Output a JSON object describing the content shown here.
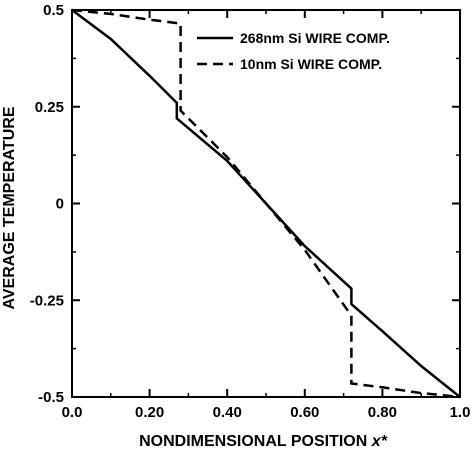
{
  "chart_data": {
    "type": "line",
    "xlabel": "NONDIMENSIONAL POSITION",
    "xlabel_var": "x*",
    "ylabel": "AVERAGE TEMPERATURE",
    "xlim": [
      0.0,
      1.0
    ],
    "ylim": [
      -0.5,
      0.5
    ],
    "x_ticks": [
      0.0,
      0.2,
      0.4,
      0.6,
      0.8,
      1.0
    ],
    "x_tick_labels": [
      "0.0",
      "0.20",
      "0.40",
      "0.60",
      "0.80",
      "1.0"
    ],
    "y_ticks": [
      0.5,
      0.25,
      0,
      -0.25,
      -0.5
    ],
    "y_tick_labels": [
      "0.5",
      "0.25",
      "0",
      "-0.25",
      "-0.5"
    ],
    "grid": false,
    "legend_position": "top-right",
    "series": [
      {
        "name": "268nm Si WIRE COMP.",
        "style": "solid",
        "color": "#000000",
        "points": [
          [
            0.0,
            0.5
          ],
          [
            0.1,
            0.425
          ],
          [
            0.2,
            0.33
          ],
          [
            0.27,
            0.26
          ],
          [
            0.27,
            0.22
          ],
          [
            0.4,
            0.11
          ],
          [
            0.5,
            0.0
          ],
          [
            0.6,
            -0.11
          ],
          [
            0.72,
            -0.22
          ],
          [
            0.72,
            -0.26
          ],
          [
            0.8,
            -0.33
          ],
          [
            0.9,
            -0.42
          ],
          [
            1.0,
            -0.5
          ]
        ]
      },
      {
        "name": "10nm Si WIRE COMP.",
        "style": "dashed",
        "color": "#000000",
        "points": [
          [
            0.0,
            0.5
          ],
          [
            0.1,
            0.49
          ],
          [
            0.2,
            0.475
          ],
          [
            0.28,
            0.465
          ],
          [
            0.28,
            0.24
          ],
          [
            0.4,
            0.12
          ],
          [
            0.5,
            0.0
          ],
          [
            0.6,
            -0.12
          ],
          [
            0.72,
            -0.29
          ],
          [
            0.72,
            -0.465
          ],
          [
            0.8,
            -0.475
          ],
          [
            0.9,
            -0.49
          ],
          [
            1.0,
            -0.5
          ]
        ]
      }
    ]
  }
}
